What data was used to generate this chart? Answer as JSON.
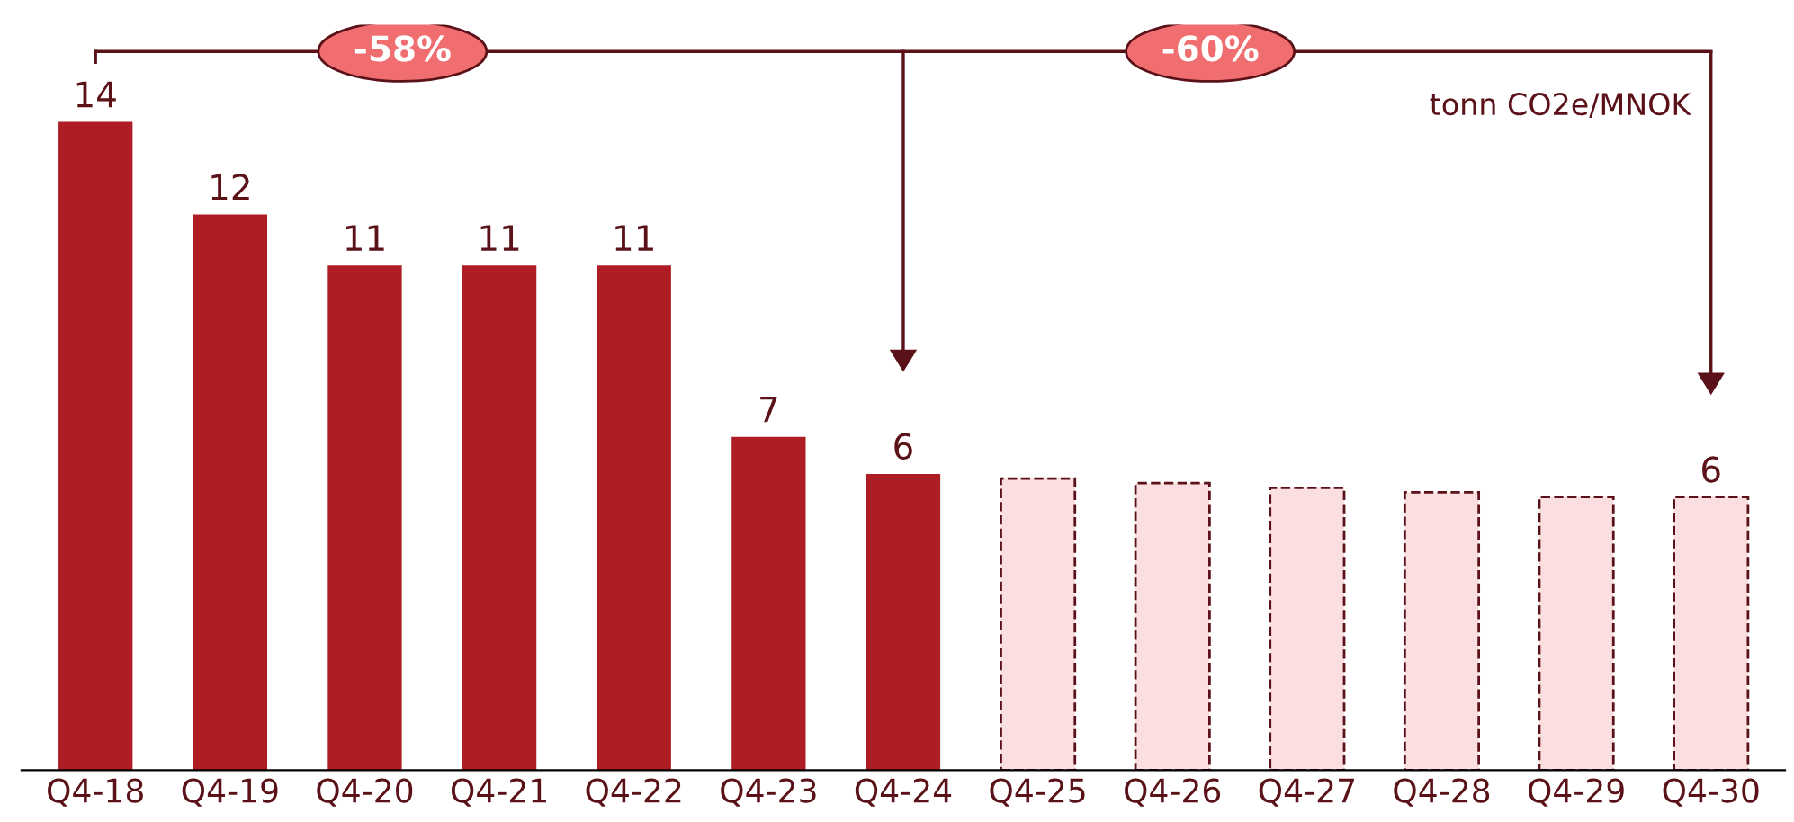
{
  "chart_data": {
    "type": "bar",
    "categories": [
      "Q4-18",
      "Q4-19",
      "Q4-20",
      "Q4-21",
      "Q4-22",
      "Q4-23",
      "Q4-24",
      "Q4-25",
      "Q4-26",
      "Q4-27",
      "Q4-28",
      "Q4-29",
      "Q4-30"
    ],
    "series": [
      {
        "color": "#ad1d23",
        "line_style": "solid",
        "values": [
          14.0,
          12.0,
          10.9,
          10.9,
          10.9,
          7.2,
          6.4,
          null,
          null,
          null,
          null,
          null,
          null
        ],
        "value_labels": [
          "14",
          "12",
          "11",
          "11",
          "11",
          "7",
          "6",
          null,
          null,
          null,
          null,
          null,
          null
        ]
      },
      {
        "color": "#fbdfe0",
        "line_style": "dashed",
        "values": [
          null,
          null,
          null,
          null,
          null,
          null,
          null,
          6.3,
          6.2,
          6.1,
          6.0,
          5.9,
          5.9
        ],
        "value_labels": [
          null,
          null,
          null,
          null,
          null,
          null,
          null,
          null,
          null,
          null,
          null,
          null,
          "6"
        ]
      }
    ],
    "annotations": [
      "-58%",
      "-60%",
      "tonn CO2e/MNOK"
    ],
    "grid": false,
    "legend": false
  }
}
